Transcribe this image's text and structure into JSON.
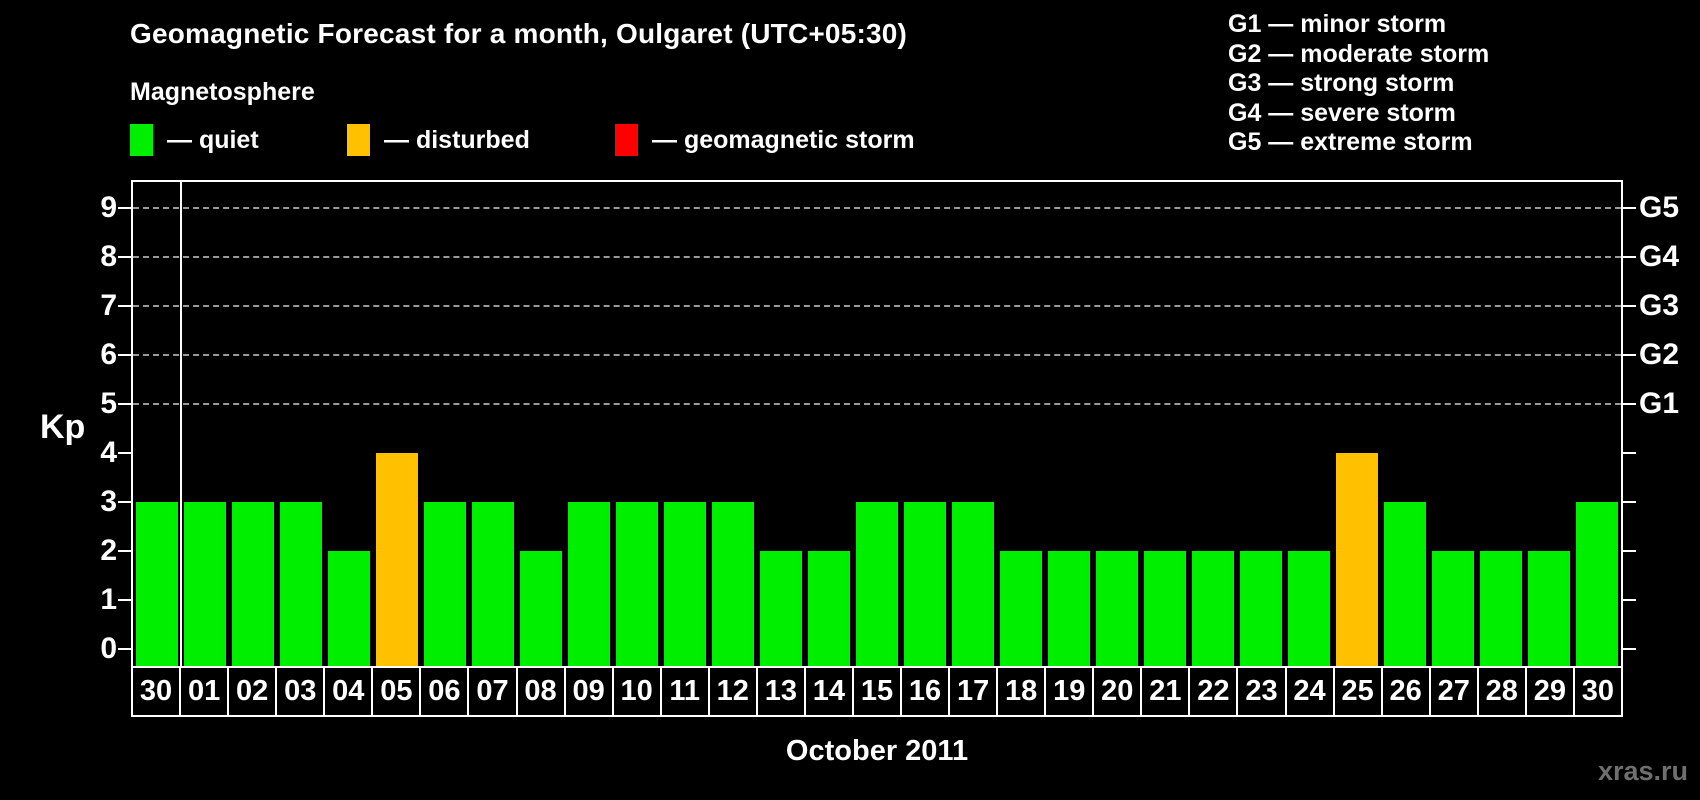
{
  "title": "Geomagnetic Forecast for a month, Oulgaret (UTC+05:30)",
  "subtitle": "Magnetosphere",
  "legend": {
    "items": [
      {
        "name": "quiet",
        "color": "#00ee00",
        "label": "— quiet"
      },
      {
        "name": "disturbed",
        "color": "#ffc000",
        "label": "— disturbed"
      },
      {
        "name": "storm",
        "color": "#ff0000",
        "label": "— geomagnetic storm"
      }
    ]
  },
  "storm_scale_legend": [
    "G1 — minor storm",
    "G2 — moderate storm",
    "G3 — strong storm",
    "G4 — severe storm",
    "G5 — extreme storm"
  ],
  "chart_data": {
    "type": "bar",
    "title": "Geomagnetic Forecast for a month, Oulgaret (UTC+05:30)",
    "xlabel": "October 2011",
    "ylabel": "Kp",
    "ylim": [
      0,
      9
    ],
    "grid": "dashed horizontal lines at Kp 5-9",
    "legend_position": "top-left",
    "categories": [
      "30",
      "01",
      "02",
      "03",
      "04",
      "05",
      "06",
      "07",
      "08",
      "09",
      "10",
      "11",
      "12",
      "13",
      "14",
      "15",
      "16",
      "17",
      "18",
      "19",
      "20",
      "21",
      "22",
      "23",
      "24",
      "25",
      "26",
      "27",
      "28",
      "29",
      "30"
    ],
    "values": [
      3,
      3,
      3,
      3,
      2,
      4,
      3,
      3,
      2,
      3,
      3,
      3,
      3,
      2,
      2,
      3,
      3,
      3,
      2,
      2,
      2,
      2,
      2,
      2,
      2,
      4,
      3,
      2,
      2,
      2,
      3
    ],
    "statuses": [
      "quiet",
      "quiet",
      "quiet",
      "quiet",
      "quiet",
      "disturbed",
      "quiet",
      "quiet",
      "quiet",
      "quiet",
      "quiet",
      "quiet",
      "quiet",
      "quiet",
      "quiet",
      "quiet",
      "quiet",
      "quiet",
      "quiet",
      "quiet",
      "quiet",
      "quiet",
      "quiet",
      "quiet",
      "quiet",
      "disturbed",
      "quiet",
      "quiet",
      "quiet",
      "quiet",
      "quiet"
    ],
    "status_colors": {
      "quiet": "#00ee00",
      "disturbed": "#ffc000",
      "storm": "#ff0000"
    },
    "y_ticks": [
      0,
      1,
      2,
      3,
      4,
      5,
      6,
      7,
      8,
      9
    ],
    "gridlines_at": [
      5,
      6,
      7,
      8,
      9
    ],
    "right_axis_labels": [
      {
        "kp": 5,
        "label": "G1"
      },
      {
        "kp": 6,
        "label": "G2"
      },
      {
        "kp": 7,
        "label": "G3"
      },
      {
        "kp": 8,
        "label": "G4"
      },
      {
        "kp": 9,
        "label": "G5"
      }
    ],
    "month_separator_after_index": 0
  },
  "footer": {
    "watermark": "xras.ru"
  }
}
